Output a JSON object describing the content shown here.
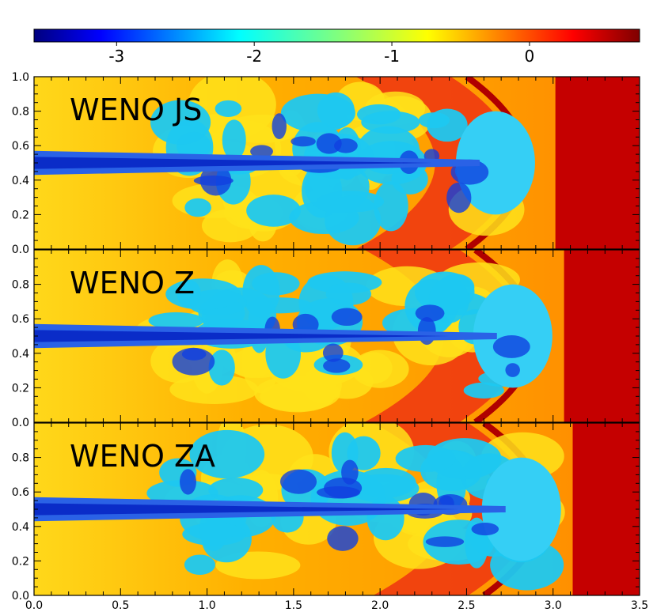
{
  "chart_data": {
    "type": "heatmap",
    "colormap": "jet",
    "colorbar": {
      "ticks": [
        -3,
        -2,
        -1,
        0
      ],
      "tick_labels": [
        "-3",
        "-2",
        "-1",
        "0"
      ],
      "range": [
        -3.6,
        0.8
      ]
    },
    "xlim": [
      0.0,
      3.5
    ],
    "x_ticks": [
      0.0,
      0.5,
      1.0,
      1.5,
      2.0,
      2.5,
      3.0,
      3.5
    ],
    "x_tick_labels": [
      "0.0",
      "0.5",
      "1.0",
      "1.5",
      "2.0",
      "2.5",
      "3.0",
      "3.5"
    ],
    "ylim": [
      0.0,
      1.0
    ],
    "y_ticks": [
      0.0,
      0.2,
      0.4,
      0.6,
      0.8,
      1.0
    ],
    "panels": [
      {
        "title": "WENO JS",
        "y_tick_labels": [
          "0.0",
          "0.2",
          "0.4",
          "0.6",
          "0.8",
          "1.0"
        ],
        "bow_shock_x": 3.05,
        "mix_front_x": 2.85,
        "jet_half_width": 0.07,
        "ambient_value": 0.5
      },
      {
        "title": "WENO Z",
        "y_tick_labels": [
          "0.0",
          "0.2",
          "0.4",
          "0.6",
          "0.8",
          ""
        ],
        "bow_shock_x": 3.1,
        "mix_front_x": 2.95,
        "jet_half_width": 0.07,
        "ambient_value": 0.5
      },
      {
        "title": "WENO ZA",
        "y_tick_labels": [
          "0.0",
          "0.2",
          "0.4",
          "0.6",
          "0.8",
          ""
        ],
        "bow_shock_x": 3.15,
        "mix_front_x": 3.0,
        "jet_half_width": 0.07,
        "ambient_value": 0.5
      }
    ]
  }
}
